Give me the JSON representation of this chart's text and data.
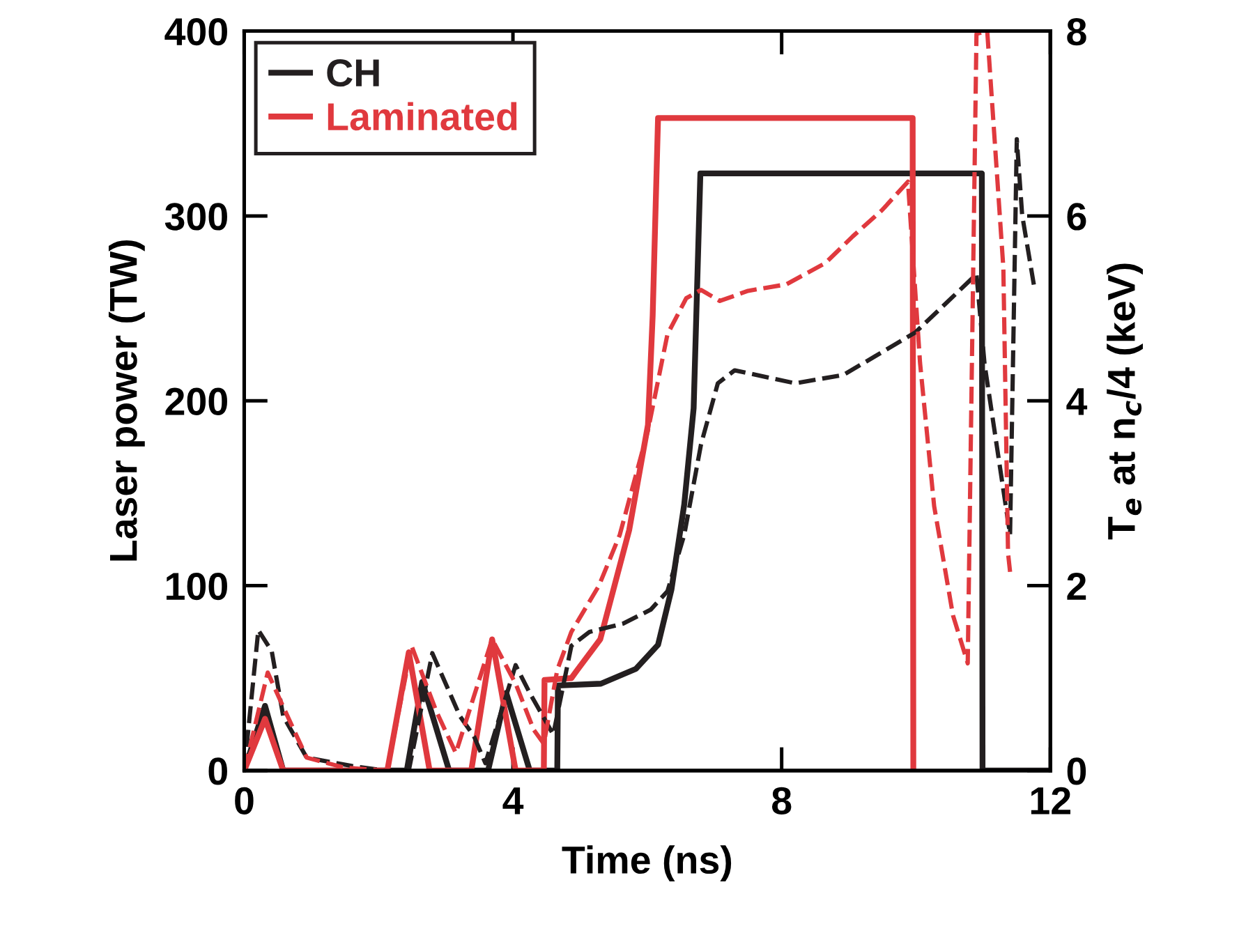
{
  "chart_data": {
    "type": "line",
    "xlabel": "Time (ns)",
    "ylabel": "Laser power (TW)",
    "y2label": "T$_{e}$ at n$_{c}$/4 (keV)",
    "xlim": [
      0,
      12
    ],
    "xticks": [
      0,
      4,
      8,
      12
    ],
    "ylim": [
      0,
      400
    ],
    "yticks": [
      0,
      100,
      200,
      300,
      400
    ],
    "y2lim": [
      0,
      8
    ],
    "y2ticks": [
      0,
      2,
      4,
      6,
      8
    ],
    "grid": false,
    "legend": "top left",
    "marker": "none",
    "series": [
      {
        "name": "CH",
        "color": "#231f20",
        "line_style": "solid",
        "x": [
          0,
          0.31,
          0.58,
          2.42,
          2.65,
          3.05,
          3.63,
          3.9,
          4.25,
          4.66,
          4.67,
          5.31,
          5.83,
          6.16,
          6.36,
          6.55,
          6.69,
          6.79,
          10.98,
          10.99,
          12
        ],
        "values": [
          0,
          35,
          0,
          0,
          48,
          0,
          0,
          42,
          0,
          0,
          46,
          47,
          55,
          68,
          98,
          144,
          196,
          323,
          323,
          0,
          0
        ]
      },
      {
        "name": "Laminated",
        "color": "#e0393e",
        "line_style": "solid",
        "x": [
          0,
          0.31,
          0.58,
          2.13,
          2.45,
          2.76,
          3.38,
          3.69,
          4.04,
          4.46,
          4.47,
          4.87,
          4.95,
          5.3,
          5.73,
          6.01,
          6.08,
          6.16,
          9.95,
          9.96
        ],
        "values": [
          0,
          28,
          0,
          0,
          64,
          0,
          0,
          71,
          0,
          0,
          49,
          50,
          54,
          71,
          130,
          187,
          246,
          353,
          353,
          0
        ]
      },
      {
        "color": "#231f20",
        "line_style": "dashed",
        "axis": "y2",
        "x": [
          0,
          0.21,
          0.41,
          0.58,
          0.93,
          1.6,
          2.1,
          2.45,
          2.8,
          3.21,
          3.42,
          3.59,
          4.04,
          4.25,
          4.6,
          4.87,
          5.14,
          5.64,
          6.05,
          6.3,
          6.55,
          6.8,
          7.05,
          7.3,
          8.2,
          8.92,
          9.99,
          10.9,
          11.02,
          11.4,
          11.5,
          11.58,
          11.76
        ],
        "values": [
          0,
          1.52,
          1.29,
          0.59,
          0.14,
          0.05,
          0,
          0,
          1.27,
          0.59,
          0.37,
          0.08,
          1.14,
          0.84,
          0.39,
          1.35,
          1.5,
          1.59,
          1.74,
          1.94,
          2.55,
          3.53,
          4.19,
          4.33,
          4.19,
          4.28,
          4.74,
          5.37,
          4.4,
          2.55,
          6.83,
          6.01,
          5.23
        ]
      },
      {
        "color": "#e0393e",
        "line_style": "dashed",
        "axis": "y2",
        "x": [
          0,
          0.35,
          0.58,
          0.93,
          1.5,
          2.13,
          2.49,
          2.86,
          3.15,
          3.69,
          4.04,
          4.31,
          4.46,
          4.66,
          4.87,
          5.28,
          5.59,
          6.01,
          6.3,
          6.58,
          6.8,
          7.08,
          7.5,
          8.07,
          8.65,
          9.06,
          9.49,
          9.88,
          10.06,
          10.27,
          10.55,
          10.77,
          10.9,
          11.06,
          11.3,
          11.37,
          11.4
        ],
        "values": [
          0,
          1.06,
          0.69,
          0.14,
          0.03,
          0,
          1.35,
          0.64,
          0.19,
          1.42,
          0.94,
          0.44,
          0.29,
          1.09,
          1.5,
          2.0,
          2.55,
          3.68,
          4.72,
          5.11,
          5.2,
          5.08,
          5.19,
          5.26,
          5.49,
          5.78,
          6.06,
          6.37,
          4.41,
          2.86,
          1.68,
          1.16,
          7.97,
          8.0,
          5.44,
          2.35,
          2.15
        ]
      }
    ]
  }
}
